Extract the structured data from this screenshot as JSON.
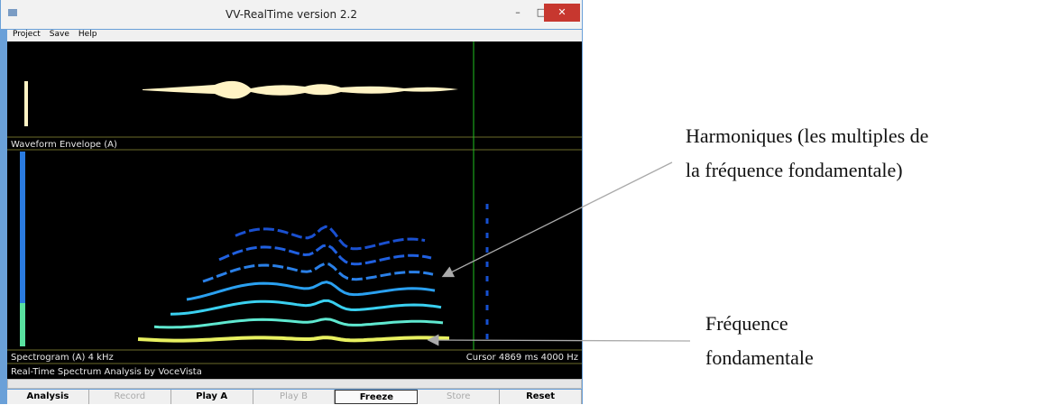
{
  "window": {
    "title": "VV-RealTime version 2.2"
  },
  "menu": [
    "Project",
    "Save",
    "Help"
  ],
  "panels": {
    "waveform_label": "Waveform Envelope (A)",
    "spectrogram_label": "Spectrogram (A)   4 kHz",
    "cursor_info": "Cursor  4869 ms  4000 Hz",
    "status": "Real-Time Spectrum Analysis by VoceVista"
  },
  "buttons": [
    "Analysis",
    "Record",
    "Play A",
    "Play B",
    "Freeze",
    "Store",
    "Reset"
  ],
  "annotations": {
    "harmonics": [
      "Harmoniques (les multiples de",
      "la fréquence fondamentale)"
    ],
    "fundamental": [
      "Fréquence",
      "fondamentale"
    ]
  }
}
